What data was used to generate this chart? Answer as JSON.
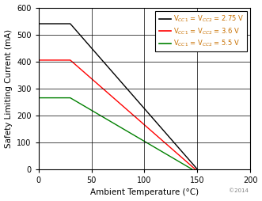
{
  "title": "",
  "xlabel": "Ambient Temperature (°C)",
  "ylabel": "Safety Limiting Current (mA)",
  "xlim": [
    0,
    200
  ],
  "ylim": [
    0,
    600
  ],
  "xticks": [
    0,
    50,
    100,
    150,
    200
  ],
  "yticks": [
    0,
    100,
    200,
    300,
    400,
    500,
    600
  ],
  "background_color": "#ffffff",
  "grid_color": "#000000",
  "watermark": "©2014",
  "lines": [
    {
      "label": "V$_{CC1}$ = V$_{CC2}$ = 2.75 V",
      "color": "#000000",
      "x": [
        0,
        30,
        150
      ],
      "y": [
        540,
        540,
        0
      ]
    },
    {
      "label": "V$_{CC1}$ = V$_{CC2}$ = 3.6 V",
      "color": "#ff0000",
      "x": [
        0,
        30,
        148
      ],
      "y": [
        405,
        405,
        0
      ]
    },
    {
      "label": "V$_{CC1}$ = V$_{CC2}$ = 5.5 V",
      "color": "#008000",
      "x": [
        0,
        30,
        145
      ],
      "y": [
        265,
        265,
        0
      ]
    }
  ],
  "text_color": "#000000",
  "legend_labels_color": "#c87000",
  "tick_label_color": "#000000",
  "axis_label_color": "#000000",
  "spine_color": "#000000",
  "figsize": [
    3.31,
    2.54
  ],
  "dpi": 100,
  "label_fontsize": 7.5,
  "tick_fontsize": 7,
  "legend_fontsize": 6.0
}
